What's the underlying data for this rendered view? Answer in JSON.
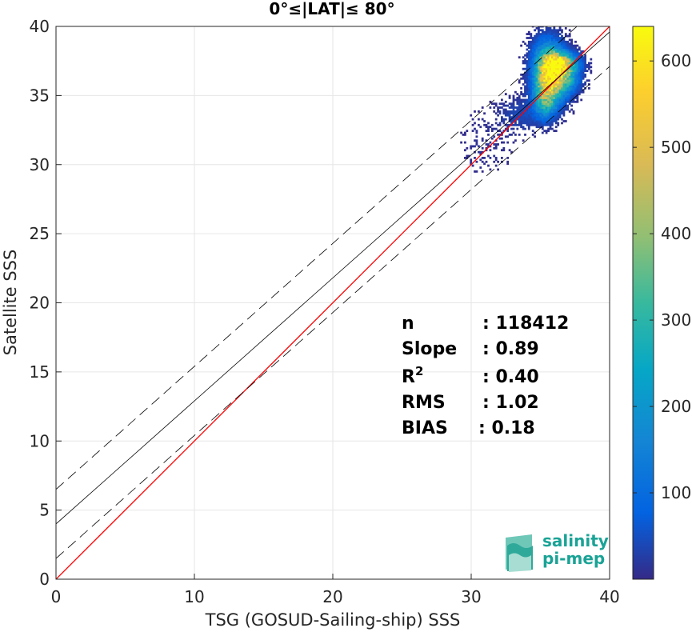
{
  "chart_data": {
    "type": "heatmap",
    "title": "0°≤|LAT|≤ 80°",
    "xlabel": "TSG (GOSUD-Sailing-ship) SSS",
    "ylabel": "Satellite SSS",
    "xlim": [
      0,
      40
    ],
    "ylim": [
      0,
      40
    ],
    "xticks": [
      "0",
      "10",
      "20",
      "30",
      "40"
    ],
    "yticks": [
      "0",
      "5",
      "10",
      "15",
      "20",
      "25",
      "30",
      "35",
      "40"
    ],
    "grid": true,
    "colorbar": {
      "range": [
        0,
        640
      ],
      "ticks": [
        "100",
        "200",
        "300",
        "400",
        "500",
        "600"
      ],
      "colormap": "parula"
    },
    "lines": [
      {
        "kind": "one-to-one",
        "color": "#ff0000",
        "style": "solid",
        "points": [
          [
            0,
            0
          ],
          [
            40,
            40
          ]
        ]
      },
      {
        "kind": "regression-fit",
        "color": "#000000",
        "style": "solid",
        "points": [
          [
            0,
            4.0
          ],
          [
            40,
            39.6
          ]
        ]
      },
      {
        "kind": "upper-bound",
        "color": "#000000",
        "style": "dashed",
        "points": [
          [
            0,
            6.5
          ],
          [
            40,
            42.1
          ]
        ]
      },
      {
        "kind": "lower-bound",
        "color": "#000000",
        "style": "dashed",
        "points": [
          [
            0,
            1.5
          ],
          [
            40,
            37.1
          ]
        ]
      }
    ],
    "density": [
      {
        "x": 35.6,
        "y": 36.4,
        "sx": 0.7,
        "sy": 1.3,
        "peak": 620
      },
      {
        "x": 36.4,
        "y": 37.3,
        "sx": 0.8,
        "sy": 0.5,
        "peak": 380
      },
      {
        "x": 35.2,
        "y": 34.5,
        "sx": 0.5,
        "sy": 0.8,
        "peak": 220
      },
      {
        "x": 36.8,
        "y": 36.2,
        "sx": 0.6,
        "sy": 0.7,
        "peak": 260
      },
      {
        "x": 33.5,
        "y": 33.5,
        "sx": 1.0,
        "sy": 0.8,
        "peak": 40
      },
      {
        "x": 35.0,
        "y": 38.5,
        "sx": 0.6,
        "sy": 0.7,
        "peak": 30
      },
      {
        "x": 31.0,
        "y": 31.5,
        "sx": 1.2,
        "sy": 1.5,
        "peak": 12
      }
    ],
    "stats": [
      {
        "label": "n",
        "value": ": 118412"
      },
      {
        "label": "Slope",
        "value": ": 0.89"
      },
      {
        "label": "R",
        "sup": "2",
        "value": ": 0.40"
      },
      {
        "label": "RMS",
        "value": ": 1.02"
      },
      {
        "label": "BIAS",
        "value": ": 0.18"
      }
    ]
  },
  "logo": {
    "line1": "salinity",
    "line2": "pi-mep"
  }
}
